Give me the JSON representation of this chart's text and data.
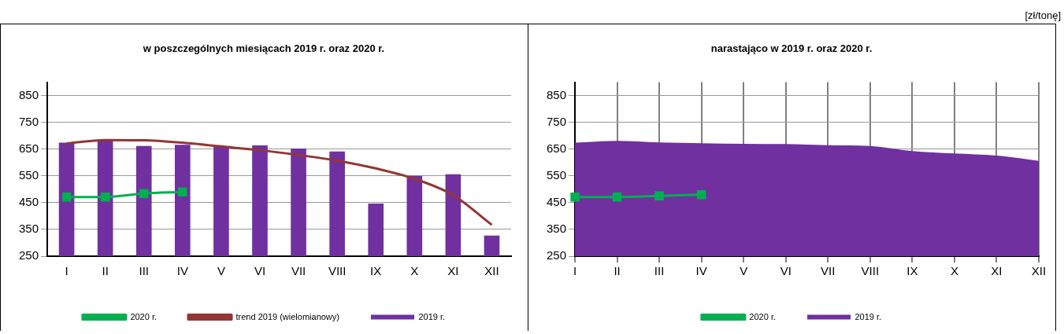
{
  "chart_data": [
    {
      "type": "bar",
      "title": "w poszczególnych miesiącach 2019 r. oraz 2020 r.",
      "categories": [
        "I",
        "II",
        "III",
        "IV",
        "V",
        "VI",
        "VII",
        "VIII",
        "IX",
        "X",
        "XI",
        "XII"
      ],
      "series": [
        {
          "name": "2019 r.",
          "color": "#7030a0",
          "values": [
            674,
            683,
            662,
            666,
            660,
            664,
            652,
            641,
            447,
            550,
            556,
            327
          ]
        },
        {
          "name": "2020 r.",
          "type": "line",
          "color": "#00b050",
          "marker": "square",
          "values": [
            471,
            471,
            484,
            490,
            null,
            null,
            null,
            null,
            null,
            null,
            null,
            null
          ]
        },
        {
          "name": "trend 2019 (wielomianowy)",
          "type": "line",
          "color": "#943634",
          "marker": "none",
          "values": [
            671,
            684,
            683,
            674,
            660,
            646,
            628,
            607,
            578,
            539,
            478,
            367
          ]
        }
      ],
      "ylim": [
        250,
        900
      ],
      "yticks": [
        250,
        350,
        450,
        550,
        650,
        750,
        850
      ],
      "grid": "y",
      "legend": "bottom"
    },
    {
      "type": "area",
      "title": "narastająco w 2019 r. oraz 2020 r.",
      "annotations": [
        "[zł/tonę]"
      ],
      "categories": [
        "I",
        "II",
        "III",
        "IV",
        "V",
        "VI",
        "VII",
        "VIII",
        "IX",
        "X",
        "XI",
        "XII"
      ],
      "series": [
        {
          "name": "2019 r.",
          "color": "#7030a0",
          "values": [
            674,
            681,
            675,
            672,
            670,
            669,
            665,
            662,
            643,
            634,
            626,
            606
          ]
        },
        {
          "name": "2020 r.",
          "type": "line",
          "color": "#00b050",
          "marker": "square",
          "values": [
            471,
            471,
            475,
            480,
            null,
            null,
            null,
            null,
            null,
            null,
            null,
            null
          ]
        }
      ],
      "ylim": [
        250,
        900
      ],
      "yticks": [
        250,
        350,
        450,
        550,
        650,
        750,
        850
      ],
      "grid": true,
      "legend": "bottom"
    }
  ]
}
